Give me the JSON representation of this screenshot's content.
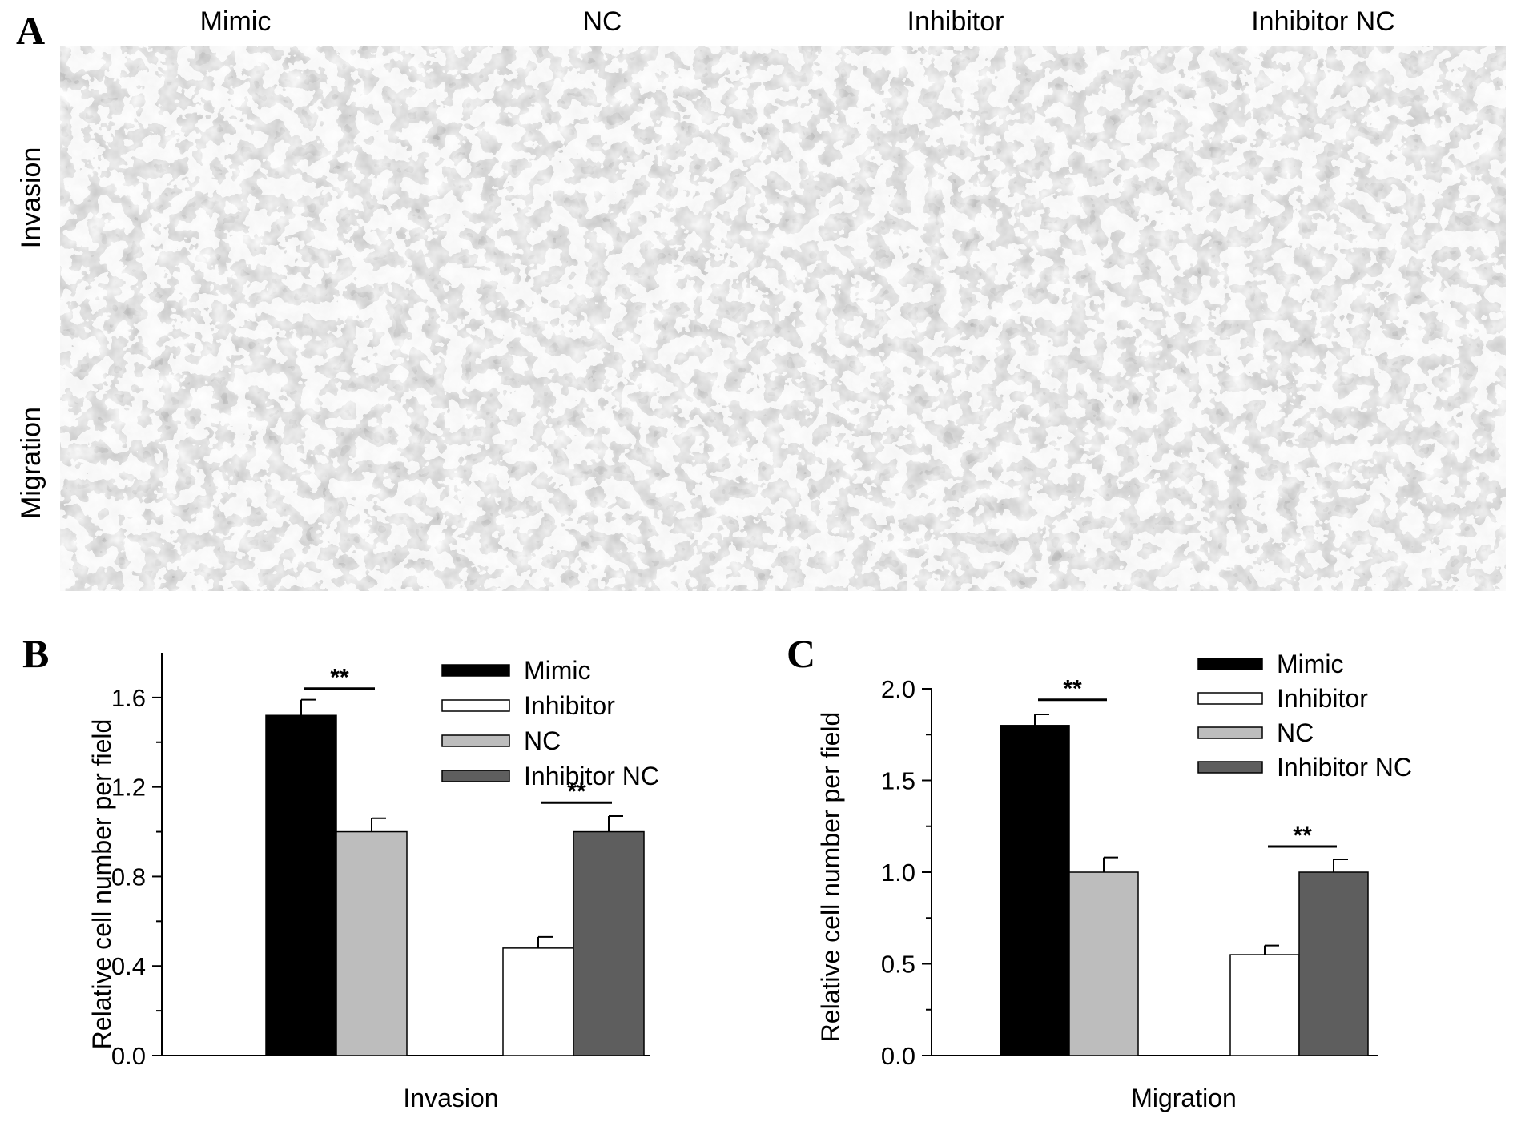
{
  "panelA": {
    "letter": "A",
    "columns": [
      "Mimic",
      "NC",
      "Inhibitor",
      "Inhibitor NC"
    ],
    "rows": [
      "Invasion",
      "Migration"
    ]
  },
  "charts": [
    {
      "id": "B",
      "letter": "B",
      "chart_data": {
        "type": "bar",
        "xlabel": "Invasion",
        "ylabel": "Relative cell number per field",
        "ylim": [
          0.0,
          1.8
        ],
        "yticks": [
          "0.0",
          "0.4",
          "0.8",
          "1.2",
          "1.6"
        ],
        "ytick_values": [
          0.0,
          0.4,
          0.8,
          1.2,
          1.6
        ],
        "legend": [
          "Mimic",
          "Inhibitor",
          "NC",
          "Inhibitor NC"
        ],
        "legend_position": "top-right",
        "bars": [
          {
            "series": "Mimic",
            "value": 1.52,
            "error": 0.07
          },
          {
            "series": "NC",
            "value": 1.0,
            "error": 0.06
          },
          {
            "series": "Inhibitor",
            "value": 0.48,
            "error": 0.05
          },
          {
            "series": "Inhibitor NC",
            "value": 1.0,
            "error": 0.07
          }
        ],
        "significance": [
          {
            "pair": [
              "Mimic",
              "NC"
            ],
            "label": "**",
            "y": 1.64
          },
          {
            "pair": [
              "Inhibitor",
              "Inhibitor NC"
            ],
            "label": "**",
            "y": 1.13
          }
        ]
      }
    },
    {
      "id": "C",
      "letter": "C",
      "chart_data": {
        "type": "bar",
        "xlabel": "Migration",
        "ylabel": "Relative cell number per field",
        "ylim": [
          0.0,
          2.0
        ],
        "yticks": [
          "0.0",
          "0.5",
          "1.0",
          "1.5",
          "2.0"
        ],
        "ytick_values": [
          0.0,
          0.5,
          1.0,
          1.5,
          2.0
        ],
        "legend": [
          "Mimic",
          "Inhibitor",
          "NC",
          "Inhibitor NC"
        ],
        "legend_position": "top-right",
        "bars": [
          {
            "series": "Mimic",
            "value": 1.8,
            "error": 0.06
          },
          {
            "series": "NC",
            "value": 1.0,
            "error": 0.08
          },
          {
            "series": "Inhibitor",
            "value": 0.55,
            "error": 0.05
          },
          {
            "series": "Inhibitor NC",
            "value": 1.0,
            "error": 0.07
          }
        ],
        "significance": [
          {
            "pair": [
              "Mimic",
              "NC"
            ],
            "label": "**",
            "y": 1.94
          },
          {
            "pair": [
              "Inhibitor",
              "Inhibitor NC"
            ],
            "label": "**",
            "y": 1.14
          }
        ]
      }
    }
  ],
  "colors": {
    "Mimic": "#000000",
    "Inhibitor": "#ffffff",
    "NC": "#bdbdbd",
    "Inhibitor NC": "#5e5e5e"
  }
}
